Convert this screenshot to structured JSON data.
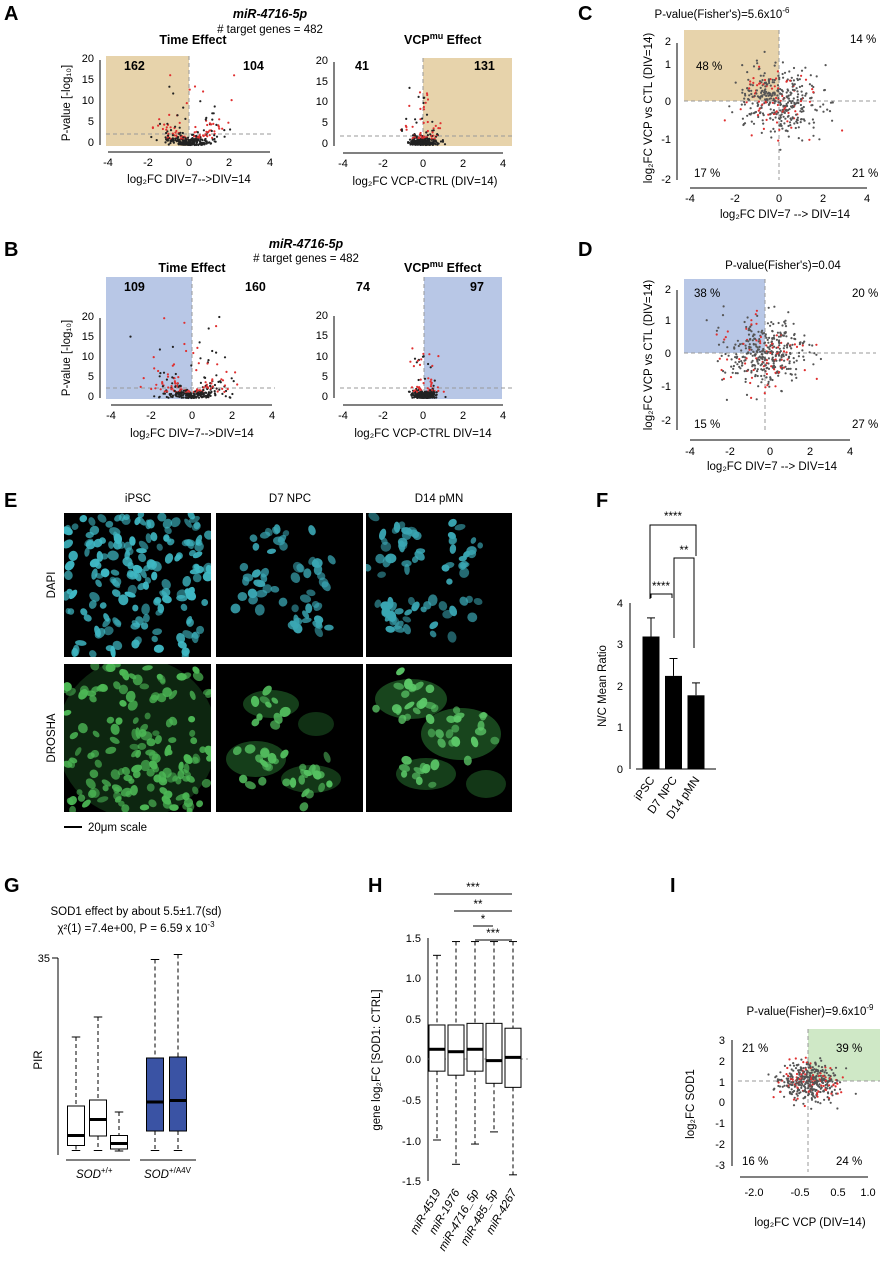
{
  "panels": {
    "A": {
      "label": "A",
      "mirna": "miR-4716-5p",
      "target_genes": "# target  genes = 482",
      "left": {
        "title": "Time Effect",
        "xlabel": "log₂FC DIV=7-->DIV=14",
        "ylabel": "P-value [-log₁₀]",
        "count_left": "162",
        "count_right": "104",
        "xticks": [
          "-4",
          "-2",
          "0",
          "2",
          "4"
        ],
        "yticks": [
          "0",
          "5",
          "10",
          "15",
          "20"
        ]
      },
      "right": {
        "title_main": "VCP",
        "title_sup": "mu",
        "title_rest": " Effect",
        "xlabel": "log₂FC VCP-CTRL (DIV=14)",
        "count_left": "41",
        "count_right": "131",
        "xticks": [
          "-4",
          "-2",
          "0",
          "2",
          "4"
        ],
        "yticks": [
          "0",
          "5",
          "10",
          "15",
          "20"
        ]
      },
      "highlight_color": "#e7d3ab"
    },
    "B": {
      "label": "B",
      "mirna": "miR-4716-5p",
      "target_genes": "# target  genes = 482",
      "left": {
        "title": "Time Effect",
        "xlabel": "log₂FC DIV=7-->DIV=14",
        "ylabel": "P-value [-log₁₀]",
        "count_left": "109",
        "count_right": "160",
        "xticks": [
          "-4",
          "-2",
          "0",
          "2",
          "4"
        ],
        "yticks": [
          "0",
          "5",
          "10",
          "15",
          "20"
        ]
      },
      "right": {
        "title_main": "VCP",
        "title_sup": "mu",
        "title_rest": " Effect",
        "xlabel": "log₂FC VCP-CTRL DIV=14",
        "count_left": "74",
        "count_right": "97",
        "xticks": [
          "-4",
          "-2",
          "0",
          "2",
          "4"
        ],
        "yticks": [
          "0",
          "5",
          "10",
          "15",
          "20"
        ]
      },
      "highlight_color": "#b8c7e6"
    },
    "C": {
      "label": "C",
      "pvalue": "P-value(Fisher's)=5.6x10",
      "pvalue_exp": "-6",
      "ylabel": "log₂FC VCP vs CTL (DIV=14)",
      "xlabel": "log₂FC DIV=7 --> DIV=14",
      "q_tl": "48 %",
      "q_tr": "14 %",
      "q_bl": "17 %",
      "q_br": "21 %",
      "xticks": [
        "-4",
        "-2",
        "0",
        "2",
        "4"
      ],
      "yticks": [
        "-2",
        "-1",
        "0",
        "1",
        "2"
      ],
      "highlight_color": "#e7d3ab"
    },
    "D": {
      "label": "D",
      "pvalue": "P-value(Fisher's)=0.04",
      "ylabel": "log₂FC VCP vs CTL (DIV=14)",
      "xlabel": "log₂FC DIV=7 --> DIV=14",
      "q_tl": "38 %",
      "q_tr": "20 %",
      "q_bl": "15 %",
      "q_br": "27 %",
      "xticks": [
        "-4",
        "-2",
        "0",
        "2",
        "4"
      ],
      "yticks": [
        "-2",
        "-1",
        "0",
        "1",
        "2"
      ],
      "highlight_color": "#b8c7e6"
    },
    "E": {
      "label": "E",
      "columns": [
        "iPSC",
        "D7 NPC",
        "D14 pMN"
      ],
      "rows": [
        "DAPI",
        "DROSHA"
      ],
      "scale": "20μm scale"
    },
    "F": {
      "label": "F",
      "ylabel": "N/C Mean Ratio",
      "sig": [
        "****",
        "**",
        "****"
      ],
      "yticks": [
        "0",
        "1",
        "2",
        "3",
        "4"
      ]
    },
    "G": {
      "label": "G",
      "title": "SOD1 effect by about 5.5±1.7(sd)",
      "stat": "χ²(1) =7.4e+00, P = 6.59 x 10",
      "stat_exp": "-3",
      "ylabel": "PIR",
      "ytick_top": "35",
      "group1": "SOD",
      "group1_sup": "+/+",
      "group2": "SOD",
      "group2_sup": "+/A4V",
      "box_color": "#3a53a4"
    },
    "H": {
      "label": "H",
      "ylabel": "gene log₂FC [SOD1: CTRL]",
      "sig": [
        "***",
        "**",
        "*",
        "***"
      ],
      "yticks": [
        "-1.5",
        "-1.0",
        "-0.5",
        "0.0",
        "0.5",
        "1.0",
        "1.5"
      ]
    },
    "I": {
      "label": "I",
      "pvalue": "P-value(Fisher)=9.6x10",
      "pvalue_exp": "-9",
      "ylabel": "log₂FC SOD1",
      "xlabel": "log₂FC VCP (DIV=14)",
      "q_tl": "21 %",
      "q_tr": "39 %",
      "q_bl": "16 %",
      "q_br": "24 %",
      "xticks": [
        "-2.0",
        "-0.5",
        "0.5",
        "1.0"
      ],
      "yticks": [
        "-3",
        "-2",
        "-1",
        "0",
        "1",
        "2",
        "3"
      ],
      "highlight_color": "#cfe8c6"
    }
  },
  "chart_data": [
    {
      "type": "bar",
      "panel": "F",
      "categories": [
        "iPSC",
        "D7 NPC",
        "D14 pMN"
      ],
      "values": [
        3.2,
        2.25,
        1.78
      ],
      "errors": [
        0.45,
        0.42,
        0.3
      ],
      "ylabel": "N/C Mean Ratio",
      "ylim": [
        0,
        4
      ]
    },
    {
      "type": "box",
      "panel": "G",
      "ylabel": "PIR",
      "groups": [
        {
          "name": "SOD+/+",
          "boxes": [
            {
              "lo": 0.3,
              "q1": 1.3,
              "med": 3.3,
              "q3": 9.2,
              "hi": 23.0
            },
            {
              "lo": 0.3,
              "q1": 3.2,
              "med": 6.5,
              "q3": 10.4,
              "hi": 27.0
            },
            {
              "lo": 0.2,
              "q1": 0.6,
              "med": 1.7,
              "q3": 3.3,
              "hi": 8.0
            }
          ]
        },
        {
          "name": "SOD+/A4V",
          "boxes": [
            {
              "lo": 0.3,
              "q1": 4.2,
              "med": 10.0,
              "q3": 18.8,
              "hi": 38.5
            },
            {
              "lo": 0.3,
              "q1": 4.2,
              "med": 10.3,
              "q3": 19.0,
              "hi": 39.5
            }
          ]
        }
      ]
    },
    {
      "type": "box",
      "panel": "H",
      "categories": [
        "miR-4519",
        "miR-1976",
        "miR-4716_5p",
        "miR-485_5p",
        "miR-4267"
      ],
      "ylim": [
        -1.5,
        1.5
      ],
      "boxes": [
        {
          "lo": -1.0,
          "q1": -0.15,
          "med": 0.12,
          "q3": 0.42,
          "hi": 1.28
        },
        {
          "lo": -1.3,
          "q1": -0.2,
          "med": 0.09,
          "q3": 0.42,
          "hi": 1.45
        },
        {
          "lo": -1.05,
          "q1": -0.15,
          "med": 0.12,
          "q3": 0.44,
          "hi": 1.45
        },
        {
          "lo": -0.9,
          "q1": -0.3,
          "med": -0.02,
          "q3": 0.44,
          "hi": 1.45
        },
        {
          "lo": -1.43,
          "q1": -0.35,
          "med": 0.02,
          "q3": 0.38,
          "hi": 1.45
        }
      ]
    }
  ]
}
